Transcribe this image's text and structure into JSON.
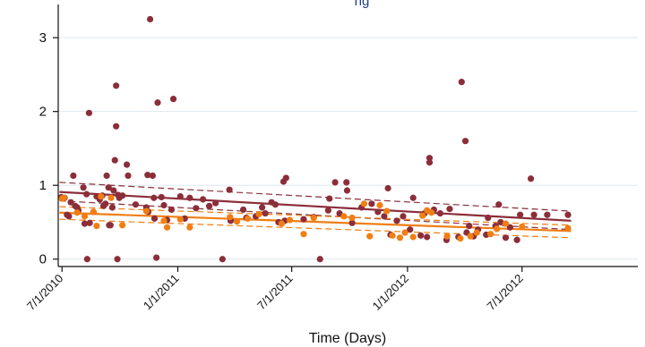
{
  "chart_data": {
    "type": "scatter",
    "title_fragment": "ng",
    "xlabel": "Time (Days)",
    "ylabel": "",
    "x_scale": "date",
    "xlim": [
      "2010-06-25",
      "2013-01-01"
    ],
    "ylim": [
      -0.1,
      3.45
    ],
    "x_ticks": [
      {
        "date": "2010-07-01",
        "label": "7/1/2010"
      },
      {
        "date": "2011-01-01",
        "label": "1/1/2011"
      },
      {
        "date": "2011-07-01",
        "label": "7/1/2011"
      },
      {
        "date": "2012-01-01",
        "label": "1/1/2012"
      },
      {
        "date": "2012-07-01",
        "label": "7/1/2012"
      }
    ],
    "y_ticks": [
      0,
      1,
      2,
      3
    ],
    "grid": "horizontal",
    "legend": "none",
    "series": [
      {
        "color": "#8b2e3a",
        "points": [
          [
            "2010-06-30",
            0.84
          ],
          [
            "2010-07-05",
            0.83
          ],
          [
            "2010-07-09",
            0.6
          ],
          [
            "2010-07-12",
            0.58
          ],
          [
            "2010-07-15",
            0.77
          ],
          [
            "2010-07-19",
            1.13
          ],
          [
            "2010-07-22",
            0.72
          ],
          [
            "2010-07-25",
            0.7
          ],
          [
            "2010-07-27",
            0.66
          ],
          [
            "2010-08-04",
            0.97
          ],
          [
            "2010-08-06",
            0.48
          ],
          [
            "2010-08-09",
            0.88
          ],
          [
            "2010-08-10",
            0.0
          ],
          [
            "2010-08-13",
            1.98
          ],
          [
            "2010-08-14",
            0.49
          ],
          [
            "2010-08-20",
            0.64
          ],
          [
            "2010-08-25",
            0.85
          ],
          [
            "2010-08-30",
            0.81
          ],
          [
            "2010-09-03",
            0.86
          ],
          [
            "2010-09-05",
            0.72
          ],
          [
            "2010-09-08",
            0.75
          ],
          [
            "2010-09-10",
            1.13
          ],
          [
            "2010-09-13",
            0.97
          ],
          [
            "2010-09-14",
            0.46
          ],
          [
            "2010-09-16",
            0.46
          ],
          [
            "2010-09-19",
            0.7
          ],
          [
            "2010-09-21",
            0.93
          ],
          [
            "2010-09-23",
            1.34
          ],
          [
            "2010-09-25",
            2.35
          ],
          [
            "2010-09-25",
            1.8
          ],
          [
            "2010-09-27",
            0.0
          ],
          [
            "2010-09-28",
            0.87
          ],
          [
            "2010-09-30",
            0.83
          ],
          [
            "2010-10-05",
            0.86
          ],
          [
            "2010-10-12",
            1.28
          ],
          [
            "2010-10-14",
            1.13
          ],
          [
            "2010-10-26",
            0.74
          ],
          [
            "2010-11-12",
            0.7
          ],
          [
            "2010-11-14",
            1.14
          ],
          [
            "2010-11-15",
            0.64
          ],
          [
            "2010-11-18",
            3.25
          ],
          [
            "2010-11-22",
            1.13
          ],
          [
            "2010-11-24",
            0.83
          ],
          [
            "2010-11-25",
            0.55
          ],
          [
            "2010-11-28",
            0.02
          ],
          [
            "2010-11-30",
            2.12
          ],
          [
            "2010-12-06",
            0.84
          ],
          [
            "2010-12-10",
            0.73
          ],
          [
            "2010-12-15",
            0.53
          ],
          [
            "2010-12-22",
            0.67
          ],
          [
            "2010-12-25",
            2.17
          ],
          [
            "2011-01-05",
            0.85
          ],
          [
            "2011-01-12",
            0.55
          ],
          [
            "2011-01-20",
            0.83
          ],
          [
            "2011-01-30",
            0.69
          ],
          [
            "2011-02-10",
            0.81
          ],
          [
            "2011-02-20",
            0.72
          ],
          [
            "2011-03-02",
            0.76
          ],
          [
            "2011-03-13",
            0.0
          ],
          [
            "2011-03-24",
            0.94
          ],
          [
            "2011-03-26",
            0.52
          ],
          [
            "2011-04-15",
            0.67
          ],
          [
            "2011-04-20",
            0.56
          ],
          [
            "2011-05-05",
            0.58
          ],
          [
            "2011-05-15",
            0.7
          ],
          [
            "2011-05-20",
            0.62
          ],
          [
            "2011-05-30",
            0.77
          ],
          [
            "2011-06-05",
            0.74
          ],
          [
            "2011-06-10",
            0.5
          ],
          [
            "2011-06-18",
            1.05
          ],
          [
            "2011-06-20",
            0.52
          ],
          [
            "2011-06-22",
            1.1
          ],
          [
            "2011-07-20",
            0.54
          ],
          [
            "2011-08-05",
            0.57
          ],
          [
            "2011-08-15",
            0.0
          ],
          [
            "2011-08-28",
            0.66
          ],
          [
            "2011-08-30",
            0.82
          ],
          [
            "2011-09-08",
            1.04
          ],
          [
            "2011-09-15",
            0.62
          ],
          [
            "2011-09-26",
            1.04
          ],
          [
            "2011-09-27",
            0.93
          ],
          [
            "2011-10-05",
            0.49
          ],
          [
            "2011-10-20",
            0.7
          ],
          [
            "2011-11-05",
            0.75
          ],
          [
            "2011-11-15",
            0.64
          ],
          [
            "2011-11-25",
            0.58
          ],
          [
            "2011-12-01",
            0.96
          ],
          [
            "2011-12-05",
            0.33
          ],
          [
            "2011-12-15",
            0.52
          ],
          [
            "2011-12-25",
            0.58
          ],
          [
            "2012-01-05",
            0.4
          ],
          [
            "2012-01-10",
            0.83
          ],
          [
            "2012-01-22",
            0.32
          ],
          [
            "2012-01-25",
            0.59
          ],
          [
            "2012-01-28",
            0.62
          ],
          [
            "2012-02-01",
            0.3
          ],
          [
            "2012-02-05",
            1.37
          ],
          [
            "2012-02-05",
            1.31
          ],
          [
            "2012-02-12",
            0.67
          ],
          [
            "2012-02-22",
            0.62
          ],
          [
            "2012-03-03",
            0.26
          ],
          [
            "2012-03-08",
            0.68
          ],
          [
            "2012-03-22",
            0.3
          ],
          [
            "2012-03-27",
            2.4
          ],
          [
            "2012-04-02",
            1.6
          ],
          [
            "2012-04-04",
            0.36
          ],
          [
            "2012-04-08",
            0.45
          ],
          [
            "2012-04-15",
            0.31
          ],
          [
            "2012-04-22",
            0.4
          ],
          [
            "2012-05-05",
            0.33
          ],
          [
            "2012-05-08",
            0.56
          ],
          [
            "2012-05-20",
            0.45
          ],
          [
            "2012-05-25",
            0.74
          ],
          [
            "2012-05-28",
            0.5
          ],
          [
            "2012-06-05",
            0.29
          ],
          [
            "2012-06-12",
            0.43
          ],
          [
            "2012-06-23",
            0.26
          ],
          [
            "2012-06-28",
            0.6
          ],
          [
            "2012-07-15",
            1.09
          ],
          [
            "2012-07-20",
            0.6
          ],
          [
            "2012-08-10",
            0.6
          ],
          [
            "2012-09-12",
            0.6
          ]
        ],
        "trend": [
          [
            "2010-06-27",
            0.91
          ],
          [
            "2012-09-17",
            0.52
          ]
        ],
        "ci_upper": [
          [
            "2010-06-27",
            1.04
          ],
          [
            "2012-09-17",
            0.65
          ]
        ],
        "ci_lower": [
          [
            "2010-06-27",
            0.79
          ],
          [
            "2012-09-17",
            0.4
          ]
        ]
      },
      {
        "color": "#f07e12",
        "points": [
          [
            "2010-07-01",
            0.82
          ],
          [
            "2010-07-04",
            0.83
          ],
          [
            "2010-07-25",
            0.63
          ],
          [
            "2010-08-06",
            0.58
          ],
          [
            "2010-08-20",
            0.64
          ],
          [
            "2010-08-25",
            0.45
          ],
          [
            "2010-09-01",
            0.85
          ],
          [
            "2010-09-17",
            0.83
          ],
          [
            "2010-10-05",
            0.46
          ],
          [
            "2010-11-12",
            0.65
          ],
          [
            "2010-12-10",
            0.52
          ],
          [
            "2010-12-15",
            0.43
          ],
          [
            "2011-01-05",
            0.54
          ],
          [
            "2011-01-20",
            0.43
          ],
          [
            "2011-03-25",
            0.57
          ],
          [
            "2011-04-05",
            0.51
          ],
          [
            "2011-04-22",
            0.55
          ],
          [
            "2011-05-10",
            0.61
          ],
          [
            "2011-06-15",
            0.48
          ],
          [
            "2011-06-28",
            0.53
          ],
          [
            "2011-07-20",
            0.34
          ],
          [
            "2011-08-05",
            0.56
          ],
          [
            "2011-09-22",
            0.58
          ],
          [
            "2011-10-05",
            0.56
          ],
          [
            "2011-10-24",
            0.75
          ],
          [
            "2011-11-02",
            0.31
          ],
          [
            "2011-11-18",
            0.73
          ],
          [
            "2011-11-29",
            0.65
          ],
          [
            "2011-12-08",
            0.32
          ],
          [
            "2011-12-20",
            0.29
          ],
          [
            "2011-12-28",
            0.36
          ],
          [
            "2012-01-10",
            0.3
          ],
          [
            "2012-01-25",
            0.59
          ],
          [
            "2012-02-01",
            0.66
          ],
          [
            "2012-02-08",
            0.63
          ],
          [
            "2012-03-04",
            0.31
          ],
          [
            "2012-03-25",
            0.28
          ],
          [
            "2012-04-10",
            0.31
          ],
          [
            "2012-04-20",
            0.36
          ],
          [
            "2012-05-12",
            0.34
          ],
          [
            "2012-05-22",
            0.41
          ],
          [
            "2012-06-05",
            0.48
          ],
          [
            "2012-07-01",
            0.44
          ],
          [
            "2012-09-12",
            0.42
          ]
        ],
        "trend": [
          [
            "2010-06-27",
            0.63
          ],
          [
            "2012-09-17",
            0.38
          ]
        ],
        "ci_upper": [
          [
            "2010-06-27",
            0.71
          ],
          [
            "2012-09-17",
            0.46
          ]
        ],
        "ci_lower": [
          [
            "2010-06-27",
            0.54
          ],
          [
            "2012-09-17",
            0.29
          ]
        ]
      }
    ]
  }
}
